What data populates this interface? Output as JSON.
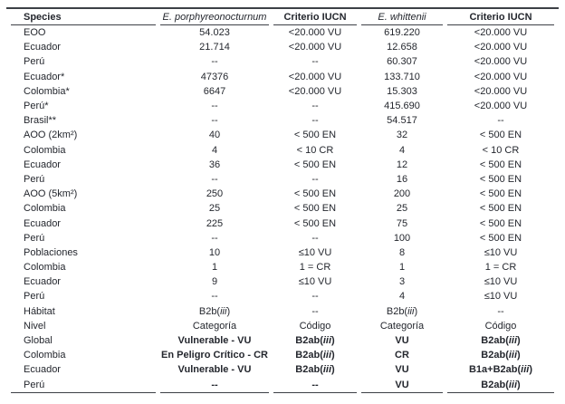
{
  "colors": {
    "text": "#24272e",
    "rule": "#3c4046",
    "background": "#ffffff"
  },
  "table": {
    "columns": [
      {
        "label": "Species",
        "style": "bold"
      },
      {
        "label": "E. porphyreonocturnum",
        "style": "italic"
      },
      {
        "label": "Criterio IUCN",
        "style": "bold"
      },
      {
        "label": "E. whittenii",
        "style": "italic"
      },
      {
        "label": "Criterio IUCN",
        "style": "bold"
      }
    ],
    "rows": [
      {
        "label": "EOO",
        "values": [
          "54.023",
          "<20.000 VU",
          "619.220",
          "<20.000 VU"
        ]
      },
      {
        "label": "Ecuador",
        "values": [
          "21.714",
          "<20.000 VU",
          "12.658",
          "<20.000 VU"
        ]
      },
      {
        "label": "Perú",
        "values": [
          "--",
          "--",
          "60.307",
          "<20.000 VU"
        ]
      },
      {
        "label": "Ecuador*",
        "values": [
          "47376",
          "<20.000 VU",
          "133.710",
          "<20.000 VU"
        ]
      },
      {
        "label": "Colombia*",
        "values": [
          "6647",
          "<20.000 VU",
          "15.303",
          "<20.000 VU"
        ]
      },
      {
        "label": "Perú*",
        "values": [
          "--",
          "--",
          "415.690",
          "<20.000 VU"
        ]
      },
      {
        "label": "Brasil**",
        "values": [
          "--",
          "--",
          "54.517",
          "--"
        ]
      },
      {
        "label": "AOO (2km²)",
        "values": [
          "40",
          "< 500 EN",
          "32",
          "< 500 EN"
        ]
      },
      {
        "label": "Colombia",
        "values": [
          "4",
          "< 10 CR",
          "4",
          "< 10 CR"
        ]
      },
      {
        "label": "Ecuador",
        "values": [
          "36",
          "< 500 EN",
          "12",
          "< 500 EN"
        ]
      },
      {
        "label": "Perú",
        "values": [
          "--",
          "--",
          "16",
          "< 500 EN"
        ]
      },
      {
        "label": "AOO (5km²)",
        "values": [
          "250",
          "< 500 EN",
          "200",
          "< 500 EN"
        ]
      },
      {
        "label": "Colombia",
        "values": [
          "25",
          "< 500 EN",
          "25",
          "< 500 EN"
        ]
      },
      {
        "label": "Ecuador",
        "values": [
          "225",
          "< 500 EN",
          "75",
          "< 500 EN"
        ]
      },
      {
        "label": "Perú",
        "values": [
          "--",
          "--",
          "100",
          "< 500 EN"
        ]
      },
      {
        "label": "Poblaciones",
        "values": [
          "10",
          "≤10 VU",
          "8",
          "≤10 VU"
        ]
      },
      {
        "label": "Colombia",
        "values": [
          "1",
          "1 = CR",
          "1",
          "1 = CR"
        ]
      },
      {
        "label": "Ecuador",
        "values": [
          "9",
          "≤10 VU",
          "3",
          "≤10 VU"
        ]
      },
      {
        "label": "Perú",
        "values": [
          "--",
          "--",
          "4",
          "≤10 VU"
        ]
      },
      {
        "label": "Hábitat",
        "values": [
          "B2b(iii)",
          "--",
          "B2b(iii)",
          "--"
        ]
      },
      {
        "label": "Nivel",
        "values": [
          "Categoría",
          "Código",
          "Categoría",
          "Código"
        ]
      },
      {
        "label": "Global",
        "values": [
          "Vulnerable - VU",
          "B2ab(iii)",
          "VU",
          "B2ab(iii)"
        ],
        "bold_values": true
      },
      {
        "label": "Colombia",
        "values": [
          "En Peligro Crítico - CR",
          "B2ab(iii)",
          "CR",
          "B2ab(iii)"
        ],
        "bold_values": true
      },
      {
        "label": "Ecuador",
        "values": [
          "Vulnerable - VU",
          "B2ab(iii)",
          "VU",
          "B1a+B2ab(iii)"
        ],
        "bold_values": true
      },
      {
        "label": "Perú",
        "values": [
          "--",
          "--",
          "VU",
          "B2ab(iii)"
        ],
        "bold_values": true
      }
    ]
  }
}
